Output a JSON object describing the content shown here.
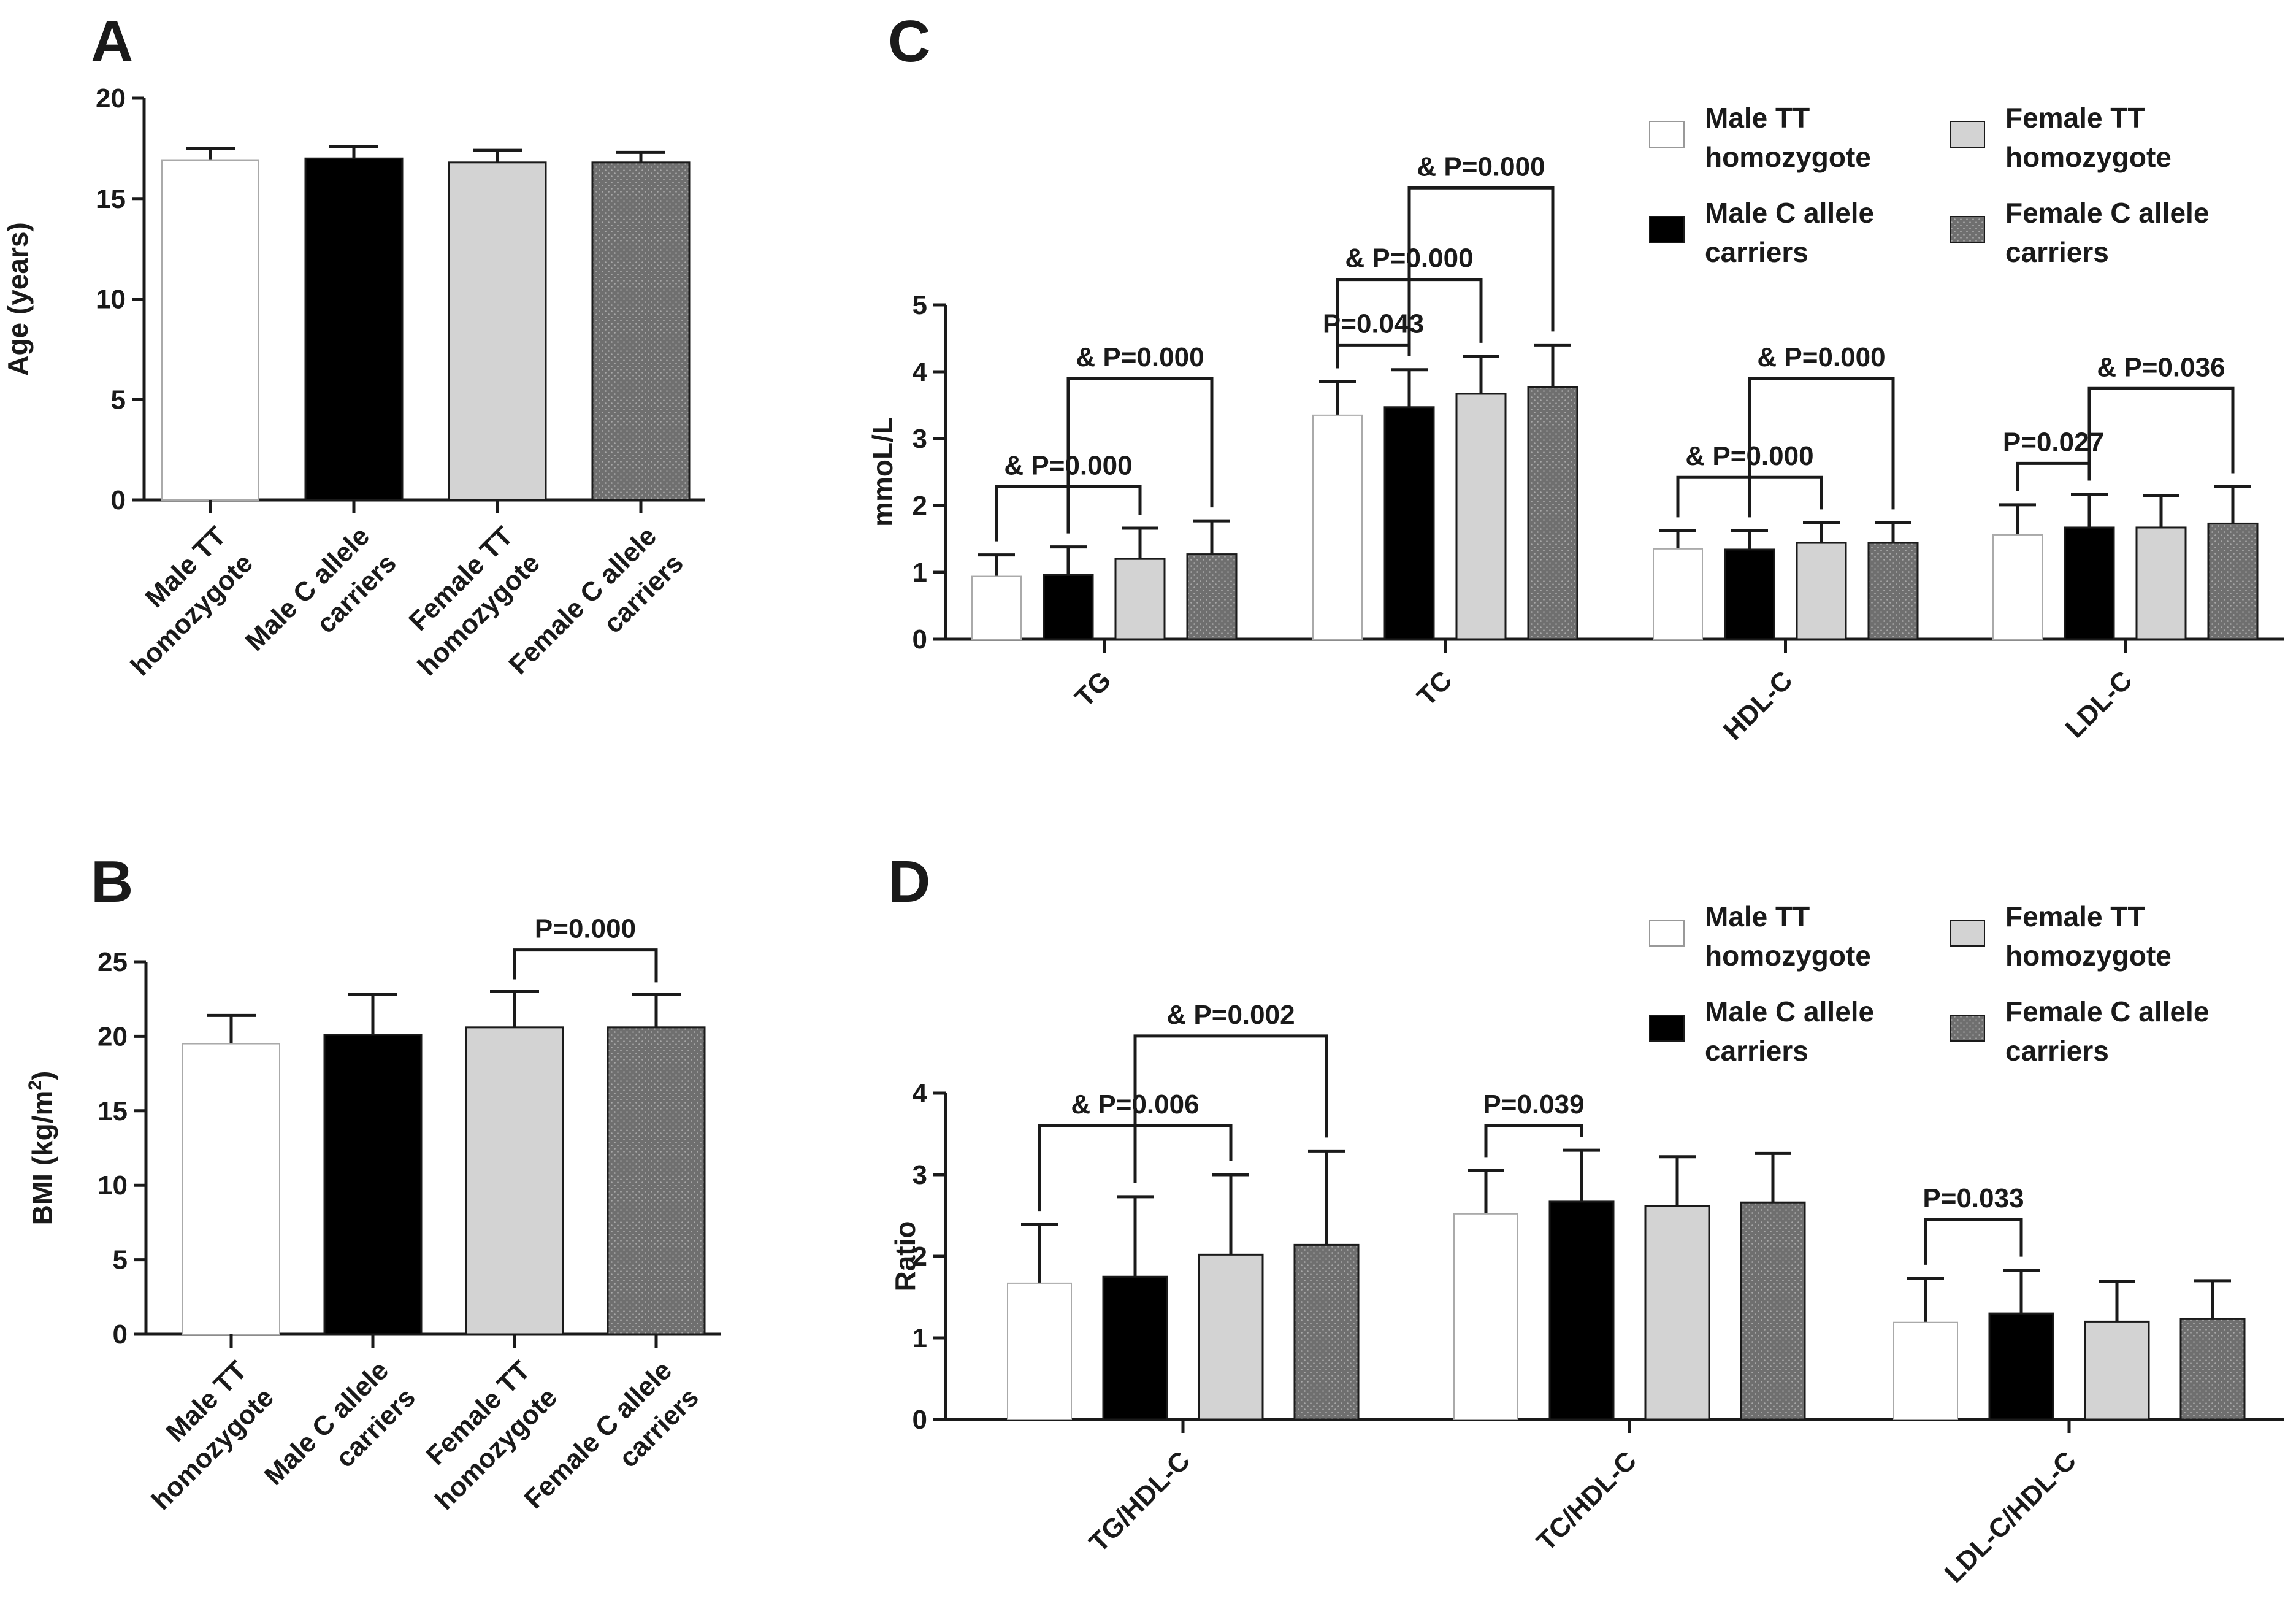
{
  "colors": {
    "male_tt": "#ffffff",
    "male_c": "#000000",
    "female_tt": "#d3d3d3",
    "female_c": "#7a7a7a",
    "axis": "#1a1a1a"
  },
  "legend": {
    "male_tt": [
      "Male TT",
      "homozygote"
    ],
    "female_tt": [
      "Female TT",
      "homozygote"
    ],
    "male_c": [
      "Male C allele",
      "carriers"
    ],
    "female_c": [
      "Female C allele",
      "carriers"
    ]
  },
  "chart_data": [
    {
      "panel": "A",
      "type": "bar",
      "ylabel": "Age (years)",
      "ylim": [
        0,
        20
      ],
      "yticks": [
        0,
        5,
        10,
        15,
        20
      ],
      "categories": [
        [
          "Male TT",
          "homozygote"
        ],
        [
          "Male C allele",
          "carriers"
        ],
        [
          "Female TT",
          "homozygote"
        ],
        [
          "Female C allele",
          "carriers"
        ]
      ],
      "series": [
        {
          "name": "Male TT homozygote",
          "value": 16.9,
          "error": 0.6
        },
        {
          "name": "Male C allele carriers",
          "value": 17.0,
          "error": 0.6
        },
        {
          "name": "Female TT homozygote",
          "value": 16.8,
          "error": 0.6
        },
        {
          "name": "Female C allele carriers",
          "value": 16.8,
          "error": 0.5
        }
      ],
      "annotations": []
    },
    {
      "panel": "B",
      "type": "bar",
      "ylabel_main": "BMI (kg/m",
      "ylabel_sup": "2",
      "ylabel_end": ")",
      "ylim": [
        0,
        25
      ],
      "yticks": [
        0,
        5,
        10,
        15,
        20,
        25
      ],
      "categories": [
        [
          "Male TT",
          "homozygote"
        ],
        [
          "Male C allele",
          "carriers"
        ],
        [
          "Female TT",
          "homozygote"
        ],
        [
          "Female C allele",
          "carriers"
        ]
      ],
      "series": [
        {
          "name": "Male TT homozygote",
          "value": 19.5,
          "error": 1.9
        },
        {
          "name": "Male C allele carriers",
          "value": 20.1,
          "error": 2.7
        },
        {
          "name": "Female TT homozygote",
          "value": 20.6,
          "error": 2.4
        },
        {
          "name": "Female C allele carriers",
          "value": 20.6,
          "error": 2.2
        }
      ],
      "annotations": [
        {
          "from": 2,
          "to": 3,
          "ybar": 25.8,
          "label": "P=0.000"
        }
      ]
    },
    {
      "panel": "C",
      "type": "grouped_bar",
      "ylabel": "mmoL/L",
      "ylim": [
        0,
        5
      ],
      "yticks": [
        0,
        1,
        2,
        3,
        4,
        5
      ],
      "categories": [
        "TG",
        "TC",
        "HDL-C",
        "LDL-C"
      ],
      "series": [
        {
          "name": "Male TT homozygote",
          "values": [
            0.94,
            3.35,
            1.35,
            1.56
          ],
          "errors": [
            0.32,
            0.5,
            0.27,
            0.45
          ]
        },
        {
          "name": "Male C allele carriers",
          "values": [
            0.96,
            3.47,
            1.34,
            1.67
          ],
          "errors": [
            0.42,
            0.56,
            0.28,
            0.5
          ]
        },
        {
          "name": "Female TT homozygote",
          "values": [
            1.2,
            3.67,
            1.44,
            1.67
          ],
          "errors": [
            0.46,
            0.56,
            0.3,
            0.48
          ]
        },
        {
          "name": "Female C allele carriers",
          "values": [
            1.27,
            3.77,
            1.44,
            1.73
          ],
          "errors": [
            0.5,
            0.63,
            0.3,
            0.55
          ]
        }
      ],
      "annotations": [
        {
          "group": 0,
          "from": 0,
          "to": 2,
          "ybar": 2.28,
          "label": "& P=0.000"
        },
        {
          "group": 0,
          "from": 1,
          "to": 3,
          "ybar": 3.9,
          "label": "& P=0.000"
        },
        {
          "group": 1,
          "from": 0,
          "to": 1,
          "ybar": 4.4,
          "label": "P=0.043"
        },
        {
          "group": 1,
          "from": 0,
          "to": 2,
          "ybar": 5.38,
          "label": "& P=0.000"
        },
        {
          "group": 1,
          "from": 1,
          "to": 3,
          "ybar": 6.75,
          "label": "& P=0.000"
        },
        {
          "group": 2,
          "from": 0,
          "to": 2,
          "ybar": 2.42,
          "label": "& P=0.000"
        },
        {
          "group": 2,
          "from": 1,
          "to": 3,
          "ybar": 3.9,
          "label": "& P=0.000"
        },
        {
          "group": 3,
          "from": 0,
          "to": 1,
          "ybar": 2.63,
          "label": "P=0.027"
        },
        {
          "group": 3,
          "from": 1,
          "to": 3,
          "ybar": 3.75,
          "label": "& P=0.036"
        }
      ]
    },
    {
      "panel": "D",
      "type": "grouped_bar",
      "ylabel": "Ratio",
      "ylim": [
        0,
        4
      ],
      "yticks": [
        0,
        1,
        2,
        3,
        4
      ],
      "categories": [
        "TG/HDL-C",
        "TC/HDL-C",
        "LDL-C/HDL-C"
      ],
      "series": [
        {
          "name": "Male TT homozygote",
          "values": [
            1.67,
            2.52,
            1.19
          ],
          "errors": [
            0.72,
            0.53,
            0.54
          ]
        },
        {
          "name": "Male C allele carriers",
          "values": [
            1.75,
            2.67,
            1.3
          ],
          "errors": [
            0.98,
            0.63,
            0.53
          ]
        },
        {
          "name": "Female TT homozygote",
          "values": [
            2.02,
            2.62,
            1.2
          ],
          "errors": [
            0.98,
            0.6,
            0.49
          ]
        },
        {
          "name": "Female C allele carriers",
          "values": [
            2.14,
            2.66,
            1.23
          ],
          "errors": [
            1.15,
            0.6,
            0.47
          ]
        }
      ],
      "annotations": [
        {
          "group": 0,
          "from": 0,
          "to": 2,
          "ybar": 3.6,
          "label": "& P=0.006"
        },
        {
          "group": 0,
          "from": 1,
          "to": 3,
          "ybar": 4.7,
          "label": "& P=0.002"
        },
        {
          "group": 1,
          "from": 0,
          "to": 1,
          "ybar": 3.6,
          "label": "P=0.039"
        },
        {
          "group": 2,
          "from": 0,
          "to": 1,
          "ybar": 2.45,
          "label": "P=0.033"
        }
      ]
    }
  ]
}
